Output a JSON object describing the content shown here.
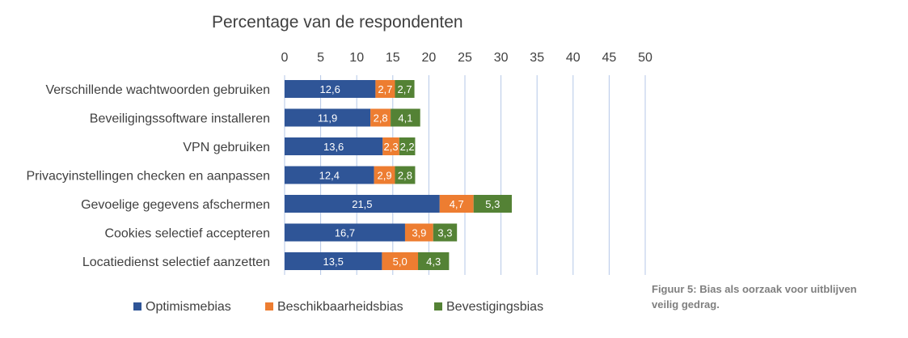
{
  "chart_data": {
    "type": "bar",
    "orientation": "horizontal",
    "stacked": true,
    "title": "",
    "xlabel": "Percentage van de respondenten",
    "ylabel": "",
    "xlim": [
      0,
      50
    ],
    "x_ticks": [
      0,
      5,
      10,
      15,
      20,
      25,
      30,
      35,
      40,
      45,
      50
    ],
    "x_axis_position": "top",
    "grid": true,
    "legend_position": "bottom",
    "categories": [
      "Verschillende wachtwoorden gebruiken",
      "Beveiligingssoftware installeren",
      "VPN gebruiken",
      "Privacyinstellingen checken en aanpassen",
      "Gevoelige gegevens afschermen",
      "Cookies selectief accepteren",
      "Locatiedienst selectief aanzetten"
    ],
    "series": [
      {
        "name": "Optimismebias",
        "color": "#2f5597",
        "values": [
          12.6,
          11.9,
          13.6,
          12.4,
          21.5,
          16.7,
          13.5
        ],
        "labels": [
          "12,6",
          "11,9",
          "13,6",
          "12,4",
          "21,5",
          "16,7",
          "13,5"
        ]
      },
      {
        "name": "Beschikbaarheidsbias",
        "color": "#ed7d31",
        "values": [
          2.7,
          2.8,
          2.3,
          2.9,
          4.7,
          3.9,
          5.0
        ],
        "labels": [
          "2,7",
          "2,8",
          "2,3",
          "2,9",
          "4,7",
          "3,9",
          "5,0"
        ]
      },
      {
        "name": "Bevestigingsbias",
        "color": "#548235",
        "values": [
          2.7,
          4.1,
          2.2,
          2.8,
          5.3,
          3.3,
          4.3
        ],
        "labels": [
          "2,7",
          "4,1",
          "2,2",
          "2,8",
          "5,3",
          "3,3",
          "4,3"
        ]
      }
    ]
  },
  "caption": {
    "line1": "Figuur 5: Bias als oorzaak voor uitblijven",
    "line2": "veilig gedrag."
  },
  "colors": {
    "gridline": "#b4c7e7",
    "text": "#404040",
    "caption": "#7f7f7f"
  }
}
